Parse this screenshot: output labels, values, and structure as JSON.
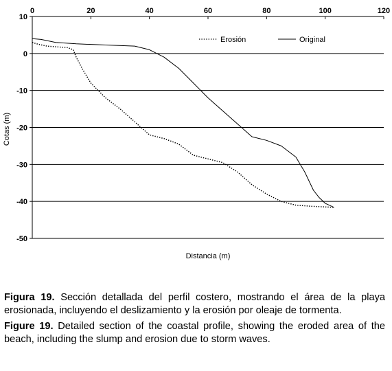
{
  "chart_data": {
    "type": "line",
    "title": "",
    "xlabel": "Distancia (m)",
    "ylabel": "Cotas (m)",
    "xlim": [
      0,
      120
    ],
    "ylim": [
      -50,
      10
    ],
    "xticks": [
      "0",
      "20",
      "40",
      "60",
      "80",
      "100",
      "120"
    ],
    "yticks": [
      "10",
      "0",
      "-10",
      "-20",
      "-30",
      "-40",
      "-50"
    ],
    "xtick_values": [
      0,
      20,
      40,
      60,
      80,
      100,
      120
    ],
    "ytick_values": [
      10,
      0,
      -10,
      -20,
      -30,
      -40,
      -50
    ],
    "grid": "horizontal",
    "legend_position": "top-right",
    "series": [
      {
        "name": "Erosión",
        "style": "dotted",
        "color": "#000000",
        "points": [
          [
            0,
            3
          ],
          [
            2,
            2.5
          ],
          [
            5,
            2
          ],
          [
            8,
            1.8
          ],
          [
            12,
            1.6
          ],
          [
            14,
            1
          ],
          [
            15,
            -1
          ],
          [
            17,
            -4
          ],
          [
            20,
            -8
          ],
          [
            25,
            -12
          ],
          [
            30,
            -15
          ],
          [
            35,
            -18.5
          ],
          [
            40,
            -22
          ],
          [
            45,
            -23
          ],
          [
            50,
            -24.5
          ],
          [
            55,
            -27.5
          ],
          [
            60,
            -28.5
          ],
          [
            65,
            -29.5
          ],
          [
            70,
            -32
          ],
          [
            75,
            -35.5
          ],
          [
            80,
            -38
          ],
          [
            85,
            -40
          ],
          [
            90,
            -41
          ],
          [
            95,
            -41.3
          ],
          [
            100,
            -41.5
          ],
          [
            103,
            -41.6
          ]
        ]
      },
      {
        "name": "Original",
        "style": "solid",
        "color": "#000000",
        "points": [
          [
            0,
            4
          ],
          [
            3,
            3.8
          ],
          [
            8,
            3
          ],
          [
            15,
            2.6
          ],
          [
            25,
            2.3
          ],
          [
            35,
            2
          ],
          [
            40,
            1
          ],
          [
            45,
            -1
          ],
          [
            50,
            -4
          ],
          [
            55,
            -8
          ],
          [
            60,
            -12
          ],
          [
            65,
            -15.5
          ],
          [
            70,
            -19
          ],
          [
            75,
            -22.5
          ],
          [
            80,
            -23.5
          ],
          [
            85,
            -25
          ],
          [
            90,
            -28
          ],
          [
            93,
            -32
          ],
          [
            96,
            -37
          ],
          [
            98,
            -39
          ],
          [
            100,
            -40.5
          ],
          [
            103,
            -41.6
          ]
        ]
      }
    ]
  },
  "captions": {
    "es_label": "Figura 19.",
    "es_text": " Sección detallada del perfil costero, mostrando el área de la playa erosionada, incluyendo el deslizamiento y la erosión por oleaje de tormenta.",
    "en_label": "Figure 19.",
    "en_text": " Detailed section of the coastal profile, showing the eroded area of the beach, including the slump and erosion due to storm waves."
  }
}
